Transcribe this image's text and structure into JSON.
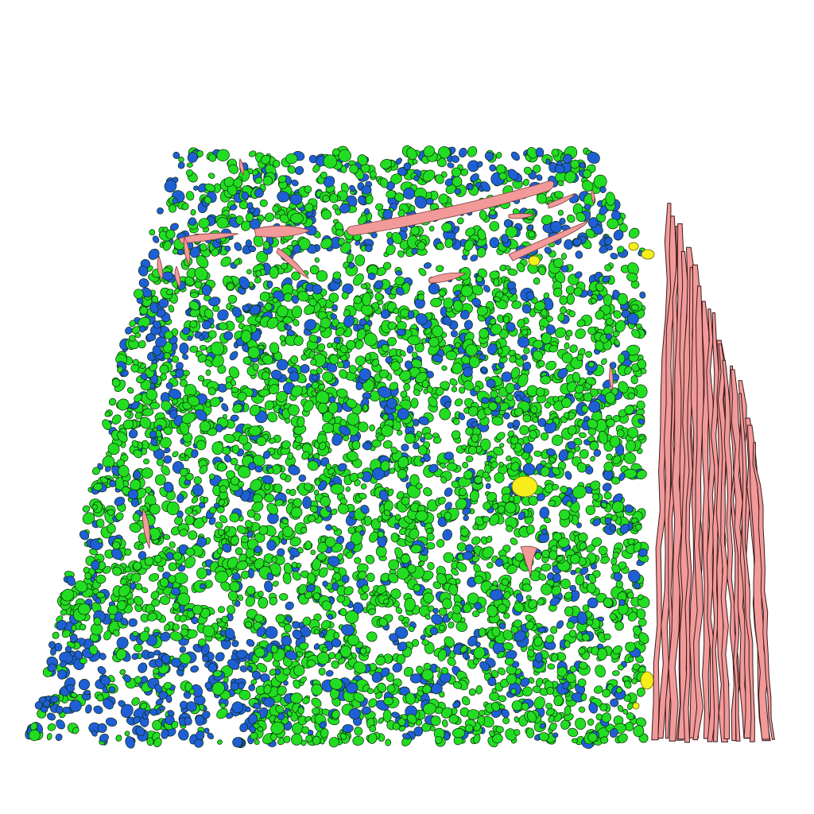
{
  "image": {
    "background": "#ffffff",
    "colors": {
      "green_cells": "#22dd22",
      "blue_cells": "#1f5fd6",
      "pink_vessels": "#f29a9a",
      "yellow_cells": "#f5ee1a",
      "outline": "#0a2a0a"
    },
    "visual_elements": [
      "dense-green-cell-cluster",
      "blue-cell-cluster",
      "pink-elongated-vessels",
      "pink-fibrous-bundle",
      "yellow-cell-bodies"
    ]
  }
}
